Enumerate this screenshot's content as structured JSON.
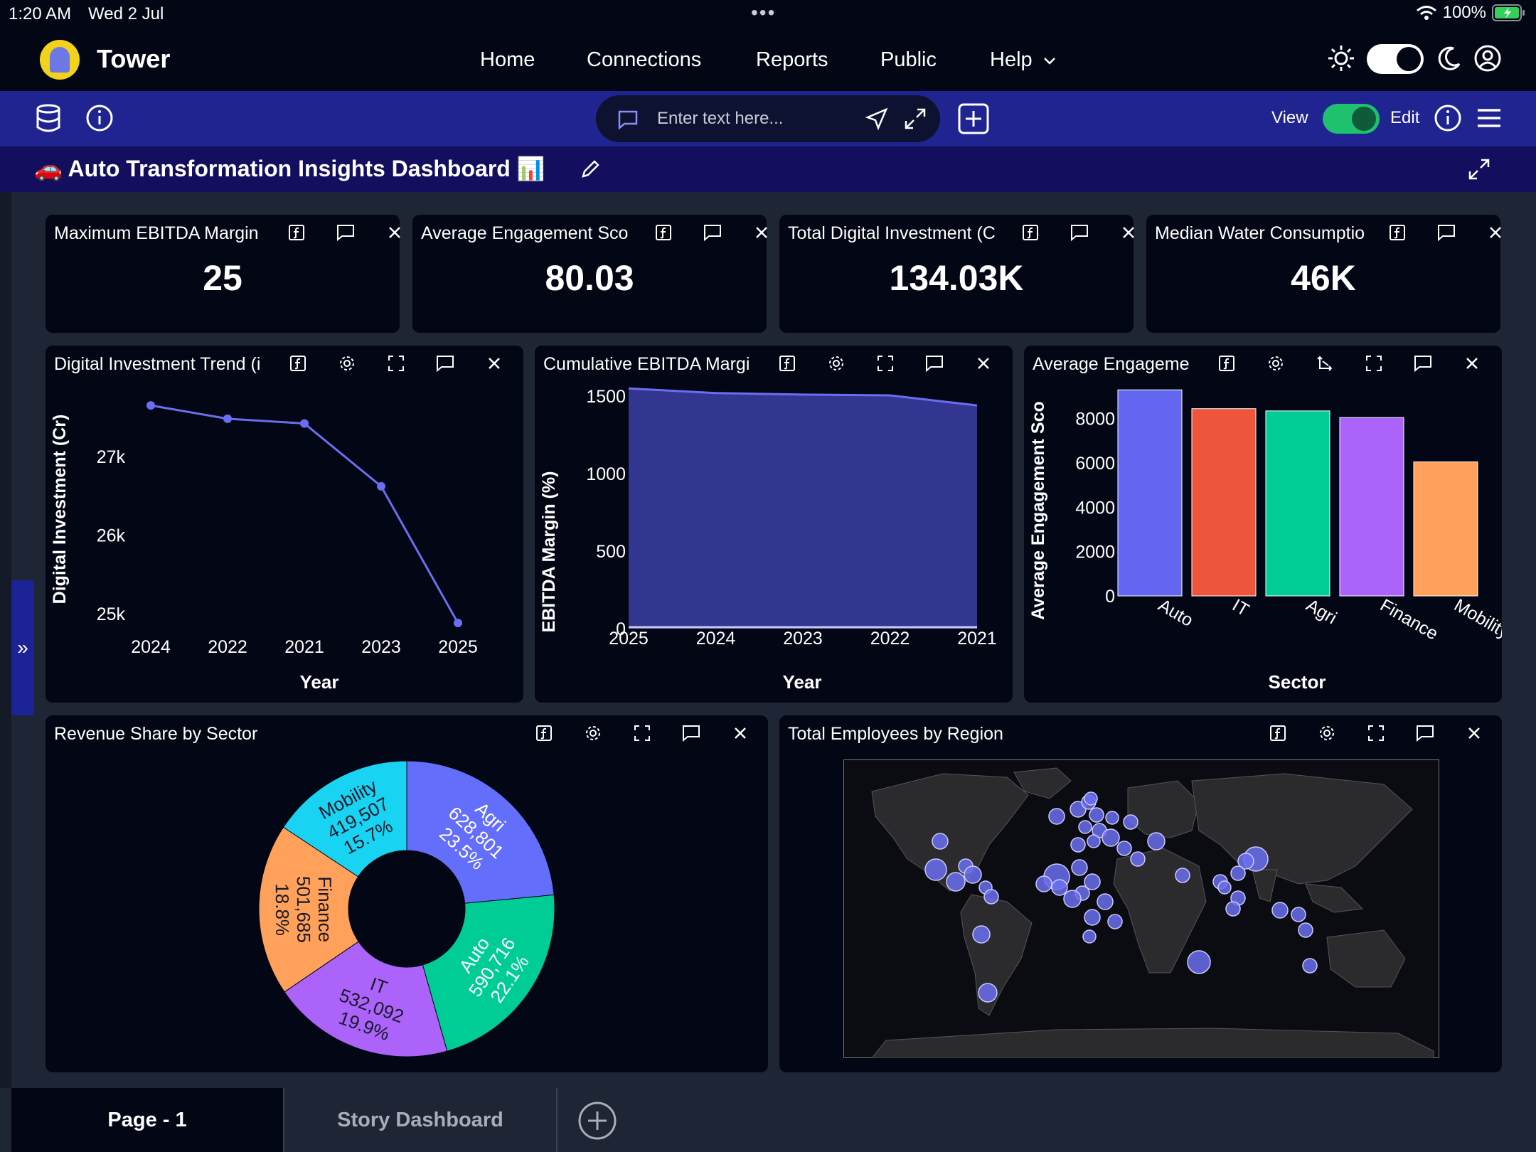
{
  "status": {
    "time": "1:20 AM",
    "date": "Wed 2 Jul",
    "battery": "100%"
  },
  "nav": {
    "brand": "Tower",
    "links": [
      "Home",
      "Connections",
      "Reports",
      "Public",
      "Help"
    ]
  },
  "toolbar": {
    "search_placeholder": "Enter text here...",
    "view_label": "View",
    "edit_label": "Edit"
  },
  "dashboard": {
    "title": "🚗 Auto Transformation Insights Dashboard 📊"
  },
  "kpis": [
    {
      "title": "Maximum EBITDA Margin",
      "value": "25"
    },
    {
      "title": "Average Engagement Sco",
      "value": "80.03"
    },
    {
      "title": "Total Digital Investment (C",
      "value": "134.03K"
    },
    {
      "title": "Median Water Consumptio",
      "value": "46K"
    }
  ],
  "charts": {
    "line": {
      "title": "Digital Investment Trend (i",
      "xlabel": "Year",
      "ylabel": "Digital Investment (Cr)",
      "color": "#6b6ef0"
    },
    "area": {
      "title": "Cumulative EBITDA Margi",
      "xlabel": "Year",
      "ylabel": "EBITDA Margin (%)",
      "color": "#6b6ef0"
    },
    "bar": {
      "title": "Average Engageme",
      "xlabel": "Sector",
      "ylabel": "Average Engagement Sco"
    },
    "pie": {
      "title": "Revenue Share by Sector"
    },
    "map": {
      "title": "Total Employees by Region"
    }
  },
  "chart_data": [
    {
      "type": "line",
      "categories": [
        "2024",
        "2022",
        "2021",
        "2023",
        "2025"
      ],
      "values": [
        27650,
        27480,
        27420,
        26620,
        24880
      ],
      "yticks": [
        "25k",
        "26k",
        "27k"
      ],
      "ylim": [
        24700,
        27850
      ],
      "xlabel": "Year",
      "ylabel": "Digital Investment (Cr)"
    },
    {
      "type": "area",
      "categories": [
        "2025",
        "2024",
        "2023",
        "2022",
        "2021"
      ],
      "values": [
        1550,
        1520,
        1510,
        1505,
        1440
      ],
      "yticks": [
        "0",
        "500",
        "1000",
        "1500"
      ],
      "ylim": [
        0,
        1560
      ],
      "xlabel": "Year",
      "ylabel": "EBITDA Margin (%)"
    },
    {
      "type": "bar",
      "categories": [
        "Auto",
        "IT",
        "Agri",
        "Finance",
        "Mobility"
      ],
      "values": [
        9300,
        8450,
        8350,
        8050,
        6050
      ],
      "colors": [
        "#6366f1",
        "#ef553b",
        "#00cc96",
        "#ab63fa",
        "#ffa15a"
      ],
      "yticks": [
        "0",
        "2000",
        "4000",
        "6000",
        "8000"
      ],
      "ylim": [
        0,
        9500
      ],
      "xlabel": "Sector",
      "ylabel": "Average Engagement Sco"
    },
    {
      "type": "pie",
      "slices": [
        {
          "label": "Agri",
          "value": "628,801",
          "pct": "23.5%",
          "share": 23.5,
          "color": "#636efa"
        },
        {
          "label": "Auto",
          "value": "590,716",
          "pct": "22.1%",
          "share": 22.1,
          "color": "#00cc96"
        },
        {
          "label": "IT",
          "value": "532,092",
          "pct": "19.9%",
          "share": 19.9,
          "color": "#ab63fa"
        },
        {
          "label": "Finance",
          "value": "501,685",
          "pct": "18.8%",
          "share": 18.8,
          "color": "#ffa15a"
        },
        {
          "label": "Mobility",
          "value": "419,507",
          "pct": "15.7%",
          "share": 15.7,
          "color": "#19d3f3"
        }
      ]
    }
  ],
  "tabs": [
    {
      "label": "Page - 1"
    },
    {
      "label": "Story Dashboard"
    }
  ]
}
